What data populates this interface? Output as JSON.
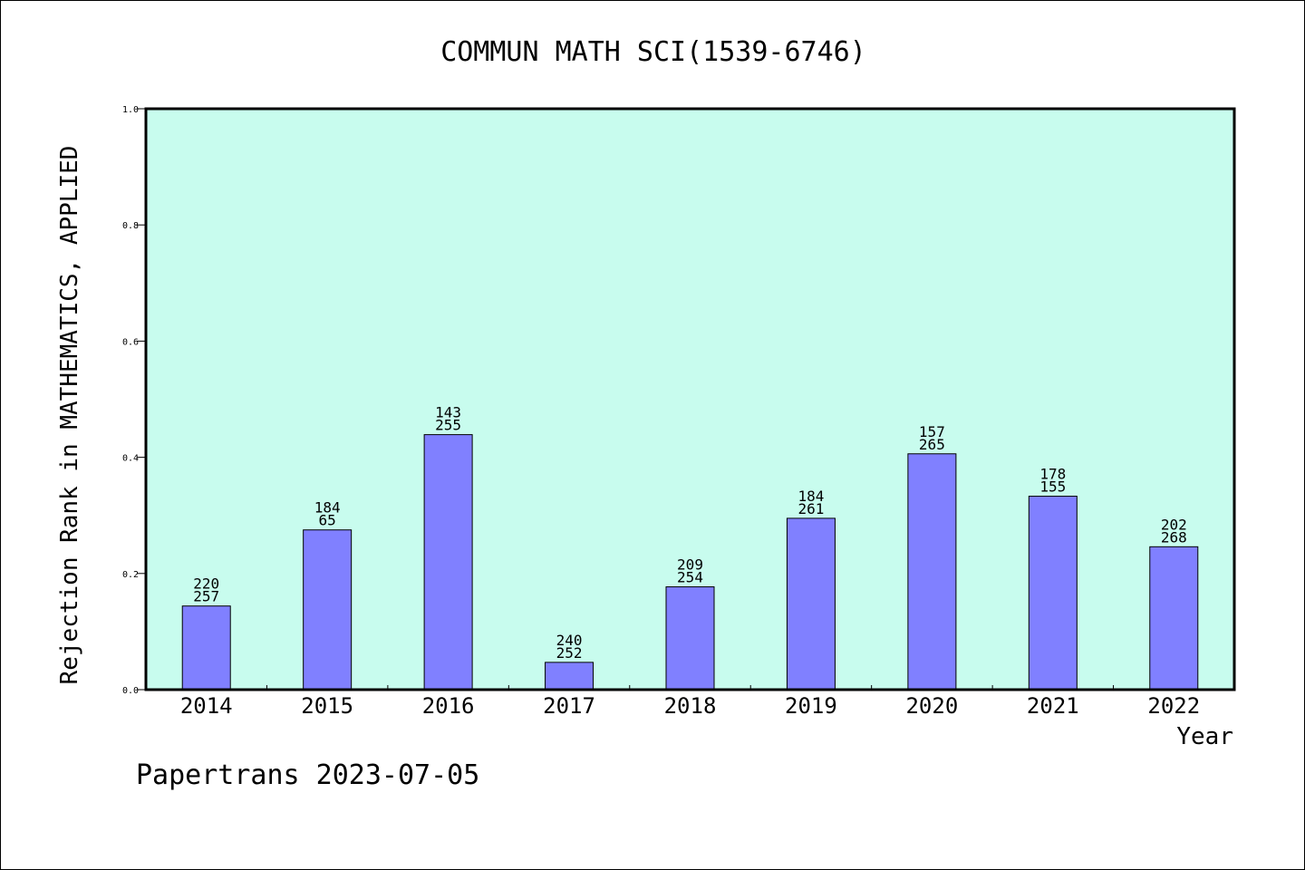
{
  "chart_data": {
    "type": "bar",
    "title": "COMMUN MATH SCI(1539-6746)",
    "xlabel": "Year",
    "ylabel": "Rejection Rank in MATHEMATICS, APPLIED",
    "ylim": [
      0,
      1.0
    ],
    "yticks": [
      "0.0",
      "0.2",
      "0.4",
      "0.6",
      "0.8",
      "1.0"
    ],
    "categories": [
      "2014",
      "2015",
      "2016",
      "2017",
      "2018",
      "2019",
      "2020",
      "2021",
      "2022"
    ],
    "values": [
      0.144,
      0.275,
      0.439,
      0.047,
      0.177,
      0.295,
      0.406,
      0.333,
      0.246
    ],
    "bar_labels": [
      [
        "220",
        "257"
      ],
      [
        "184",
        "65"
      ],
      [
        "143",
        "255"
      ],
      [
        "240",
        "252"
      ],
      [
        "209",
        "254"
      ],
      [
        "184",
        "261"
      ],
      [
        "157",
        "265"
      ],
      [
        "178",
        "155"
      ],
      [
        "202",
        "268"
      ]
    ],
    "grid": false,
    "colors": {
      "plot_background": "#c8fcee",
      "bar_fill": "#8080ff",
      "bar_stroke": "#000000"
    }
  },
  "footer": {
    "text": "Papertrans 2023-07-05"
  }
}
